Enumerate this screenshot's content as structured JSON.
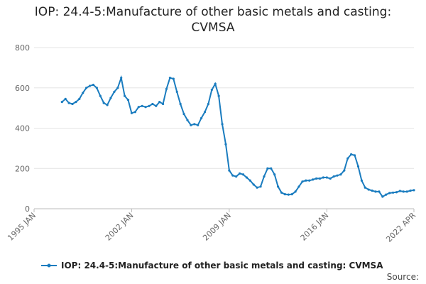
{
  "chart_data": {
    "type": "line",
    "title": "IOP: 24.4-5:Manufacture of other basic metals and casting: CVMSA",
    "x": [
      "1997 JAN",
      "1997 APR",
      "1997 JUL",
      "1997 OCT",
      "1998 JAN",
      "1998 APR",
      "1998 JUL",
      "1998 OCT",
      "1999 JAN",
      "1999 APR",
      "1999 JUL",
      "1999 OCT",
      "2000 JAN",
      "2000 APR",
      "2000 JUL",
      "2000 OCT",
      "2001 JAN",
      "2001 APR",
      "2001 JUL",
      "2001 OCT",
      "2002 JAN",
      "2002 APR",
      "2002 JUL",
      "2002 OCT",
      "2003 JAN",
      "2003 APR",
      "2003 JUL",
      "2003 OCT",
      "2004 JAN",
      "2004 APR",
      "2004 JUL",
      "2004 OCT",
      "2005 JAN",
      "2005 APR",
      "2005 JUL",
      "2005 OCT",
      "2006 JAN",
      "2006 APR",
      "2006 JUL",
      "2006 OCT",
      "2007 JAN",
      "2007 APR",
      "2007 JUL",
      "2007 OCT",
      "2008 JAN",
      "2008 APR",
      "2008 JUL",
      "2008 OCT",
      "2009 JAN",
      "2009 APR",
      "2009 JUL",
      "2009 OCT",
      "2010 JAN",
      "2010 APR",
      "2010 JUL",
      "2010 OCT",
      "2011 JAN",
      "2011 APR",
      "2011 JUL",
      "2011 OCT",
      "2012 JAN",
      "2012 APR",
      "2012 JUL",
      "2012 OCT",
      "2013 JAN",
      "2013 APR",
      "2013 JUL",
      "2013 OCT",
      "2014 JAN",
      "2014 APR",
      "2014 JUL",
      "2014 OCT",
      "2015 JAN",
      "2015 APR",
      "2015 JUL",
      "2015 OCT",
      "2016 JAN",
      "2016 APR",
      "2016 JUL",
      "2016 OCT",
      "2017 JAN",
      "2017 APR",
      "2017 JUL",
      "2017 OCT",
      "2018 JAN",
      "2018 APR",
      "2018 JUL",
      "2018 OCT",
      "2019 JAN",
      "2019 APR",
      "2019 JUL",
      "2019 OCT",
      "2020 JAN",
      "2020 APR",
      "2020 JUL",
      "2020 OCT",
      "2021 JAN",
      "2021 APR",
      "2021 JUL",
      "2021 OCT",
      "2022 JAN",
      "2022 APR"
    ],
    "series": [
      {
        "name": "IOP: 24.4-5:Manufacture of other basic metals and casting: CVMSA",
        "color": "#1a7cbf",
        "values": [
          530,
          545,
          525,
          520,
          530,
          545,
          575,
          600,
          610,
          615,
          600,
          560,
          525,
          515,
          550,
          580,
          600,
          650,
          560,
          540,
          475,
          480,
          505,
          510,
          505,
          510,
          520,
          510,
          530,
          520,
          595,
          650,
          645,
          580,
          520,
          470,
          440,
          415,
          420,
          415,
          450,
          480,
          520,
          590,
          620,
          560,
          420,
          320,
          190,
          165,
          160,
          175,
          170,
          155,
          140,
          120,
          105,
          110,
          160,
          200,
          200,
          170,
          110,
          80,
          72,
          70,
          72,
          85,
          110,
          135,
          140,
          140,
          145,
          150,
          150,
          155,
          155,
          150,
          160,
          165,
          170,
          190,
          250,
          270,
          265,
          210,
          140,
          105,
          95,
          90,
          85,
          85,
          60,
          70,
          78,
          80,
          82,
          88,
          85,
          85,
          90,
          92
        ]
      }
    ],
    "xlim": [
      "1995 JAN",
      "2022 APR"
    ],
    "xticks": [
      "1995 JAN",
      "2002 JAN",
      "2009 JAN",
      "2016 JAN",
      "2022 APR"
    ],
    "ylim": [
      0,
      800
    ],
    "yticks": [
      0,
      200,
      400,
      600,
      800
    ],
    "grid": true,
    "source": "Source:"
  }
}
